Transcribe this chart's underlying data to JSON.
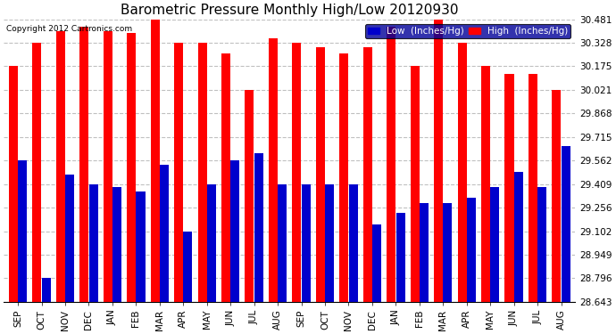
{
  "title": "Barometric Pressure Monthly High/Low 20120930",
  "copyright": "Copyright 2012 Cartronics.com",
  "legend_low": "Low  (Inches/Hg)",
  "legend_high": "High  (Inches/Hg)",
  "categories": [
    "SEP",
    "OCT",
    "NOV",
    "DEC",
    "JAN",
    "FEB",
    "MAR",
    "APR",
    "MAY",
    "JUN",
    "JUL",
    "AUG",
    "SEP",
    "OCT",
    "NOV",
    "DEC",
    "JAN",
    "FEB",
    "MAR",
    "APR",
    "MAY",
    "JUN",
    "JUL",
    "AUG"
  ],
  "high_values": [
    30.175,
    30.328,
    30.404,
    30.434,
    30.404,
    30.394,
    30.481,
    30.328,
    30.328,
    30.261,
    30.021,
    30.356,
    30.328,
    30.3,
    30.261,
    30.3,
    30.434,
    30.175,
    30.481,
    30.328,
    30.175,
    30.128,
    30.128,
    30.021
  ],
  "low_values": [
    29.562,
    28.796,
    29.468,
    29.409,
    29.391,
    29.362,
    29.535,
    29.102,
    29.409,
    29.562,
    29.61,
    29.409,
    29.409,
    29.409,
    29.409,
    29.148,
    29.221,
    29.286,
    29.286,
    29.32,
    29.391,
    29.49,
    29.391,
    29.656
  ],
  "ymin": 28.643,
  "ymax": 30.481,
  "yticks": [
    28.643,
    28.796,
    28.949,
    29.102,
    29.256,
    29.409,
    29.562,
    29.715,
    29.868,
    30.021,
    30.175,
    30.328,
    30.481
  ],
  "bar_color_high": "#FF0000",
  "bar_color_low": "#0000CC",
  "bg_color": "#FFFFFF",
  "grid_color": "#C0C0C0",
  "title_fontsize": 11,
  "axis_fontsize": 7.5,
  "legend_fontsize": 7.5,
  "bar_width": 0.38,
  "bar_gap": 0.01
}
